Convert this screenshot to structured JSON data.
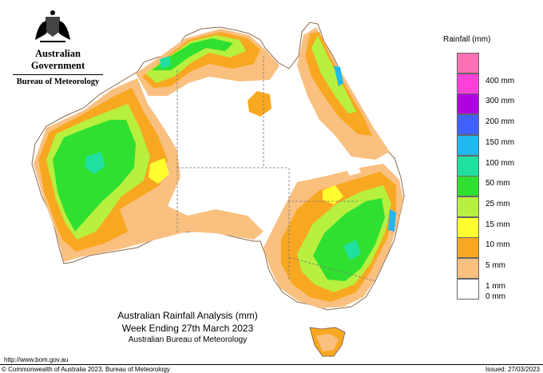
{
  "header": {
    "government": "Australian Government",
    "bureau": "Bureau of Meteorology",
    "crest_icon": "coat-of-arms-icon"
  },
  "legend": {
    "title": "Rainfall (mm)",
    "items": [
      {
        "label": "",
        "color": "#ff6fb4"
      },
      {
        "label": "400 mm",
        "color": "#ff40d8"
      },
      {
        "label": "300 mm",
        "color": "#b000e0"
      },
      {
        "label": "200 mm",
        "color": "#4060ff"
      },
      {
        "label": "150 mm",
        "color": "#20b8f0"
      },
      {
        "label": "100 mm",
        "color": "#20e0a0"
      },
      {
        "label": "50 mm",
        "color": "#30e030"
      },
      {
        "label": "25 mm",
        "color": "#b8f040"
      },
      {
        "label": "15 mm",
        "color": "#ffff30"
      },
      {
        "label": "10 mm",
        "color": "#f8a820"
      },
      {
        "label": "5 mm",
        "color": "#fac080"
      },
      {
        "label": "1 mm",
        "color": "#ffffff"
      },
      {
        "label": "0 mm",
        "color": ""
      }
    ]
  },
  "map": {
    "title": "Australian Rainfall Analysis (mm)",
    "period": "Week Ending 27th March 2023",
    "source": "Australian Bureau of Meteorology",
    "colors": {
      "none": "#ffffff",
      "light": "#fac080",
      "mod": "#f8a820",
      "ten": "#ffff30",
      "fifteen": "#b8f040",
      "heavy": "#30e030",
      "fifty": "#20e0a0",
      "hundred": "#20b8f0"
    }
  },
  "footer": {
    "url": "http://www.bom.gov.au",
    "copyright": "© Commonwealth of Australia 2023, Bureau of Meteorology",
    "issued": "Issued: 27/03/2023"
  }
}
